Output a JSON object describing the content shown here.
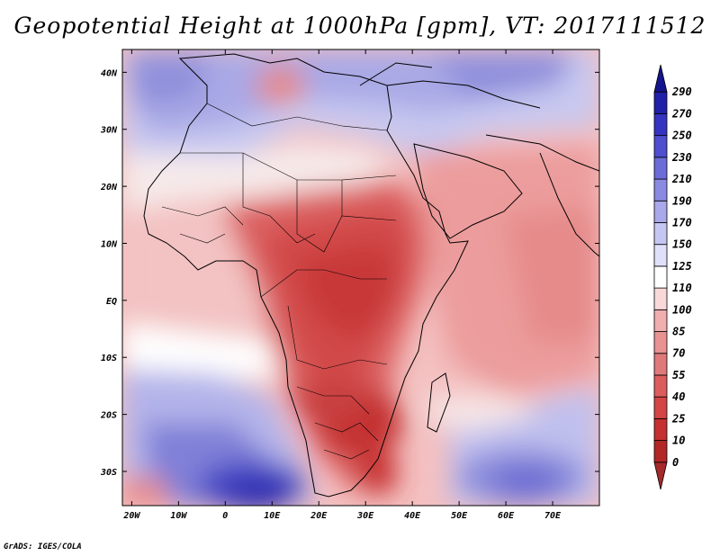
{
  "title": "Geopotential Height at 1000hPa [gpm], VT: 2017111512",
  "credit": "GrADS: IGES/COLA",
  "map": {
    "variable": "Geopotential Height",
    "level": "1000hPa",
    "units": "gpm",
    "valid_time": "2017111512",
    "region": "Africa / Arabia / western Indian Ocean",
    "lon_range": [
      -22,
      80
    ],
    "lat_range": [
      -36,
      44
    ],
    "lon_ticks": [
      {
        "value": -20,
        "label": "20W"
      },
      {
        "value": -10,
        "label": "10W"
      },
      {
        "value": 0,
        "label": "0"
      },
      {
        "value": 10,
        "label": "10E"
      },
      {
        "value": 20,
        "label": "20E"
      },
      {
        "value": 30,
        "label": "30E"
      },
      {
        "value": 40,
        "label": "40E"
      },
      {
        "value": 50,
        "label": "50E"
      },
      {
        "value": 60,
        "label": "60E"
      },
      {
        "value": 70,
        "label": "70E"
      }
    ],
    "lat_ticks": [
      {
        "value": 40,
        "label": "40N"
      },
      {
        "value": 30,
        "label": "30N"
      },
      {
        "value": 20,
        "label": "20N"
      },
      {
        "value": 10,
        "label": "10N"
      },
      {
        "value": 0,
        "label": "EQ"
      },
      {
        "value": -10,
        "label": "10S"
      },
      {
        "value": -20,
        "label": "20S"
      },
      {
        "value": -30,
        "label": "30S"
      }
    ]
  },
  "colorbar": {
    "levels": [
      "0",
      "10",
      "25",
      "40",
      "55",
      "70",
      "85",
      "100",
      "110",
      "125",
      "150",
      "170",
      "190",
      "210",
      "230",
      "250",
      "270",
      "290"
    ],
    "colors": [
      "#a52a2a",
      "#b22828",
      "#c53030",
      "#d44545",
      "#db5e5e",
      "#e07a7a",
      "#e89292",
      "#f0aeae",
      "#f8d8d8",
      "#ffffff",
      "#e0e0fa",
      "#c6c6f2",
      "#a8a8ea",
      "#8a8ae2",
      "#6c6cd8",
      "#4e4ece",
      "#3434c0",
      "#2020a8",
      "#14148c"
    ]
  }
}
